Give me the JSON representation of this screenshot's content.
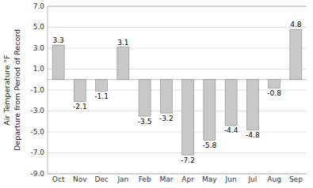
{
  "chart_data": {
    "type": "bar",
    "y_label": "Air Temperature °F\nDeparture from Period of Record",
    "categories": [
      "Oct",
      "Nov",
      "Dec",
      "Jan",
      "Feb",
      "Mar",
      "Apr",
      "May",
      "Jun",
      "Jul",
      "Aug",
      "Sep"
    ],
    "values": [
      3.3,
      -2.1,
      -1.1,
      3.1,
      -3.5,
      -3.2,
      -7.2,
      -5.8,
      -4.4,
      -4.8,
      -0.8,
      4.8
    ],
    "color": "#c8c8c8",
    "ylim": [
      -9.0,
      7.0
    ],
    "yticks": [
      {
        "value": -9.0,
        "label": "-9.0"
      },
      {
        "value": -7.0,
        "label": "-7.0"
      },
      {
        "value": -5.0,
        "label": "-5.0"
      },
      {
        "value": -3.0,
        "label": "-3.0"
      },
      {
        "value": -1.0,
        "label": "-1.0"
      },
      {
        "value": 1.0,
        "label": "1.0"
      },
      {
        "value": 3.0,
        "label": "3.0"
      },
      {
        "value": 5.0,
        "label": "5.0"
      },
      {
        "value": 7.0,
        "label": "7.0"
      }
    ],
    "grid": true,
    "data_labels": true
  }
}
